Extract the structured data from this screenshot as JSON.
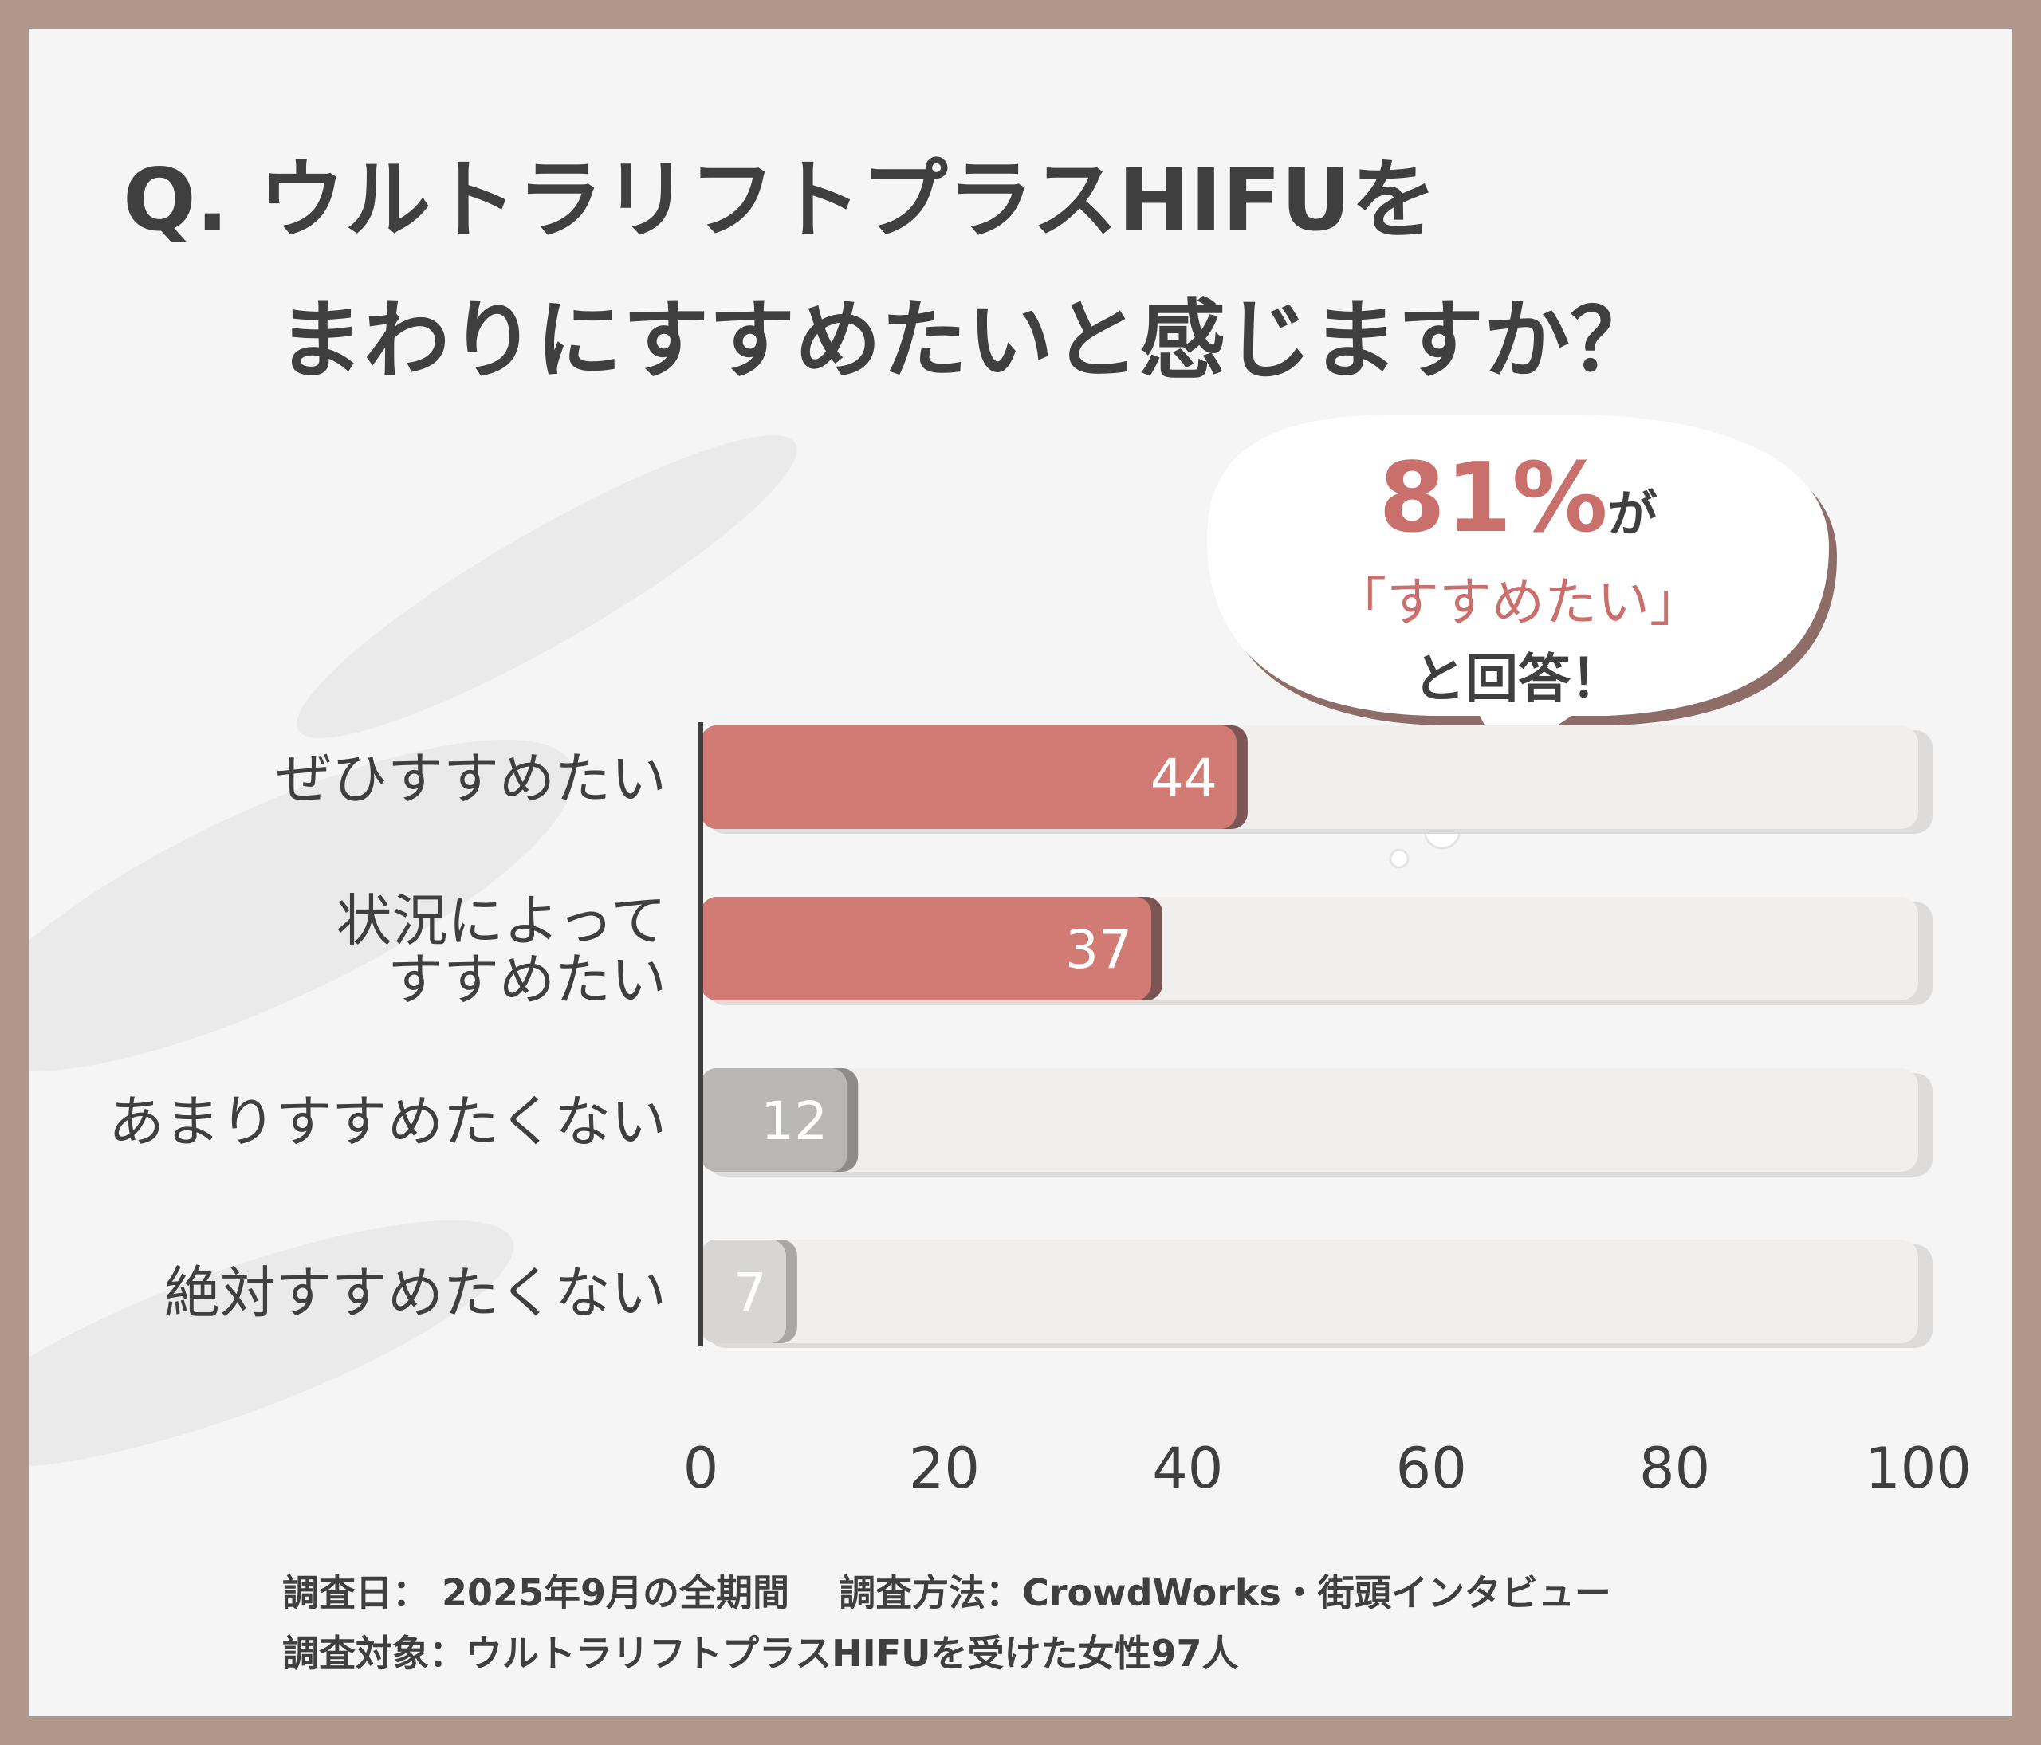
{
  "question": {
    "line1": "Q. ウルトラリフトプラスHIFUを",
    "line2": "まわりにすすめたいと感じますか？"
  },
  "callout": {
    "percent": "81%",
    "ga": "が",
    "quote": "「すすめたい」",
    "answer": "と回答！"
  },
  "chart_data": {
    "type": "bar",
    "orientation": "horizontal",
    "categories": [
      [
        "ぜひすすめたい"
      ],
      [
        "状況によって",
        "すすめたい"
      ],
      [
        "あまりすすめたくない"
      ],
      [
        "絶対すすめたくない"
      ]
    ],
    "values": [
      44,
      37,
      12,
      7
    ],
    "xlim": [
      0,
      100
    ],
    "xticks": [
      0,
      20,
      40,
      60,
      80,
      100
    ],
    "grid": false,
    "bar_colors": [
      "#d27a74",
      "#d27a74",
      "#b9b7b6",
      "#d8d6d5"
    ],
    "bar_shadow_colors": [
      "#7b5654",
      "#7b5654",
      "#8e8c8b",
      "#a9a7a6"
    ],
    "track_color": "#f1efee"
  },
  "footer": {
    "line1": "調査日： 2025年9月の全期間　 調査方法：CrowdWorks・街頭インタビュー",
    "line2": "調査対象：ウルトラリフトプラスHIFUを受けた女性97人"
  },
  "colors": {
    "frame": "#b1968c",
    "panel": "#f5f5f5",
    "text": "#3f3f3f",
    "accent": "#c9706c"
  }
}
